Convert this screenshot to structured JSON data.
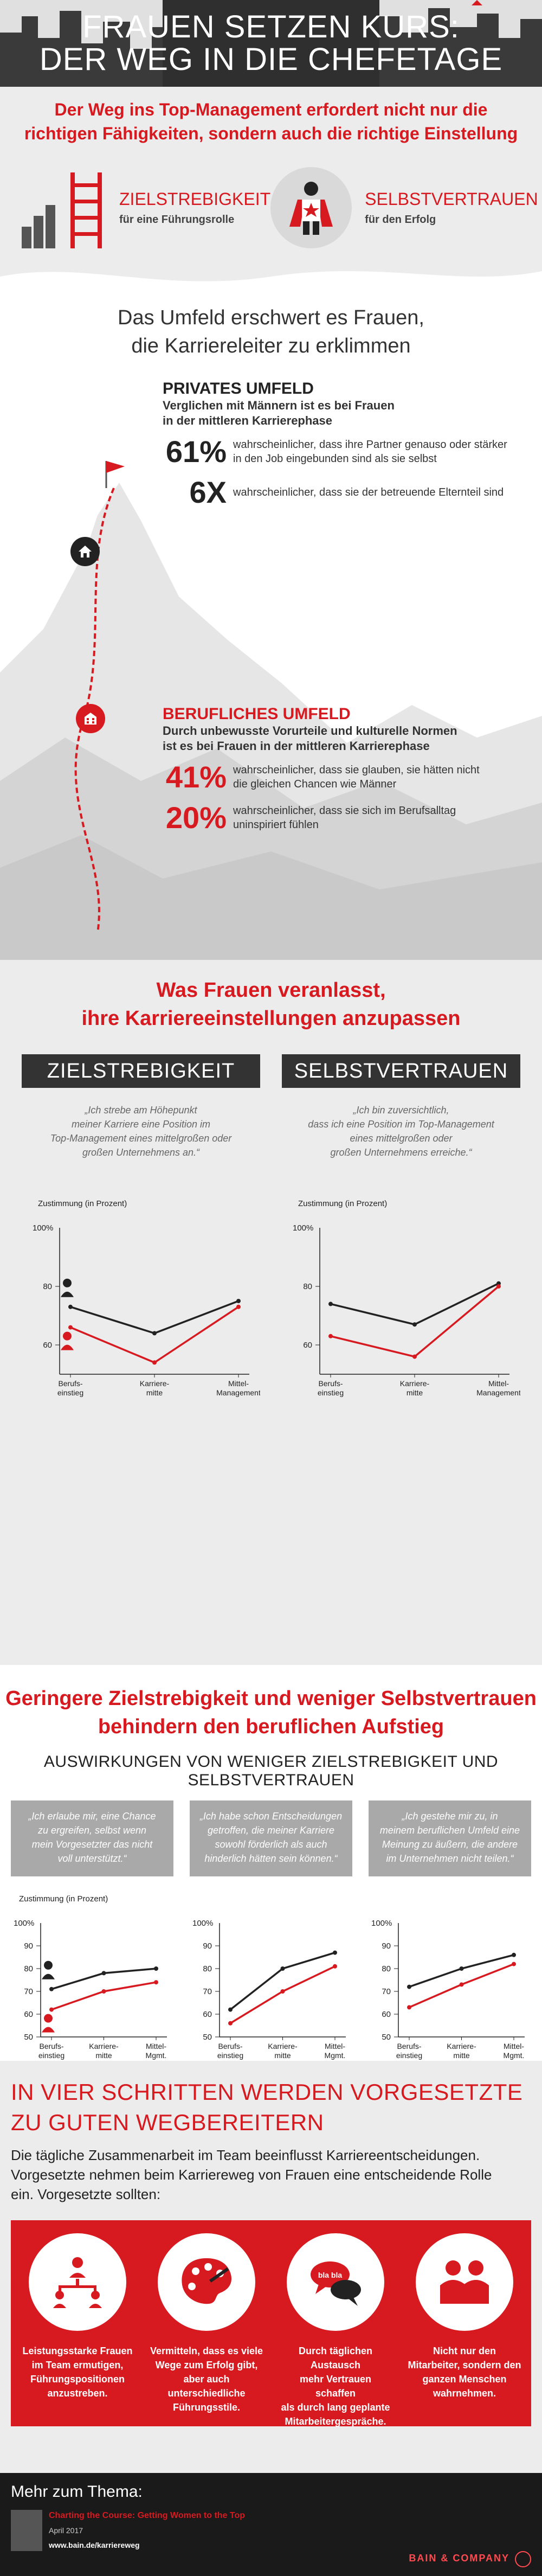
{
  "header": {
    "title_line1": "FRAUEN SETZEN KURS:",
    "title_line2": "DER WEG IN DIE CHEFETAGE"
  },
  "intro": {
    "lead_line1": "Der Weg ins Top-Management erfordert nicht nur die",
    "lead_line2": "richtigen Fähigkeiten, sondern auch die richtige Einstellung",
    "left_big": "ZIELSTREBIGKEIT",
    "left_small": "für eine Führungsrolle",
    "right_big": "SELBSTVERTRAUEN",
    "right_small": "für den Erfolg"
  },
  "environment": {
    "title_line1": "Das Umfeld erschwert es Frauen,",
    "title_line2": "die Karriereleiter zu erklimmen",
    "private": {
      "heading": "PRIVATES UMFELD",
      "sub_line1": "Verglichen mit Männern ist es bei Frauen",
      "sub_line2": "in der mittleren Karrierephase",
      "stats": [
        {
          "num": "61%",
          "desc_line1": "wahrscheinlicher, dass ihre Partner genauso oder stärker",
          "desc_line2": "in den Job eingebunden sind als sie selbst"
        },
        {
          "num": "6X",
          "desc_line1": "wahrscheinlicher, dass sie der betreuende Elternteil sind",
          "desc_line2": ""
        }
      ]
    },
    "professional": {
      "heading": "BERUFLICHES UMFELD",
      "sub_line1": "Durch unbewusste Vorurteile und kulturelle Normen",
      "sub_line2": "ist es bei Frauen in der mittleren Karrierephase",
      "stats": [
        {
          "num": "41%",
          "desc_line1": "wahrscheinlicher, dass sie glauben, sie hätten nicht",
          "desc_line2": "die gleichen Chancen wie Männer"
        },
        {
          "num": "20%",
          "desc_line1": "wahrscheinlicher, dass sie sich im Berufsalltag",
          "desc_line2": "uninspiriert fühlen"
        }
      ]
    }
  },
  "section2": {
    "title_line1": "Was Frauen veranlasst,",
    "title_line2": "ihre Karriereeinstellungen anzupassen",
    "left": {
      "label": "ZIELSTREBIGKEIT",
      "quote_line1": "„Ich strebe am Höhepunkt",
      "quote_line2": "meiner Karriere eine Position im",
      "quote_line3": "Top-Management eines mittelgroßen oder",
      "quote_line4": "großen Unternehmens an.“"
    },
    "right": {
      "label": "SELBSTVERTRAUEN",
      "quote_line1": "„Ich bin zuversichtlich,",
      "quote_line2": "dass ich eine Position im Top-Management",
      "quote_line3": "eines mittelgroßen oder",
      "quote_line4": "großen Unternehmens erreiche.“"
    }
  },
  "section3": {
    "title_line1": "Geringere Zielstrebigkeit und weniger Selbstvertrauen",
    "title_line2": "behindern den beruflichen Aufstieg",
    "subtitle": "AUSWIRKUNGEN VON WENIGER ZIELSTREBIGKEIT UND SELBSTVERTRAUEN",
    "quotes": [
      {
        "l1": "„Ich erlaube mir, eine Chance",
        "l2": "zu ergreifen, selbst wenn",
        "l3": "mein Vorgesetzter das nicht",
        "l4": "voll unterstützt.“"
      },
      {
        "l1": "„Ich habe schon Entscheidungen",
        "l2": "getroffen, die meiner Karriere",
        "l3": "sowohl förderlich als auch",
        "l4": "hinderlich hätten sein können.“"
      },
      {
        "l1": "„Ich gestehe mir zu, in",
        "l2": "meinem beruflichen Umfeld eine",
        "l3": "Meinung zu äußern, die andere",
        "l4": "im Unternehmen nicht teilen.“"
      }
    ]
  },
  "section4": {
    "title_line1": "IN VIER SCHRITTEN WERDEN VORGESETZTE",
    "title_line2": "ZU GUTEN WEGBEREITERN",
    "para_line1": "Die tägliche Zusammenarbeit im Team beeinflusst Karriereentscheidungen.",
    "para_line2": "Vorgesetzte nehmen beim Karriereweg von Frauen eine entscheidende Rolle",
    "para_line3": "ein. Vorgesetzte sollten:",
    "steps": [
      {
        "l1": "Leistungsstarke Frauen",
        "l2": "im Team ermutigen,",
        "l3": "Führungspositionen",
        "l4": "anzustreben."
      },
      {
        "l1": "Vermitteln, dass es viele",
        "l2": "Wege zum Erfolg gibt,",
        "l3": "aber auch unterschiedliche",
        "l4": "Führungsstile."
      },
      {
        "l1": "Durch täglichen Austausch",
        "l2": "mehr Vertrauen schaffen",
        "l3": "als durch lang geplante",
        "l4": "Mitarbeitergespräche."
      },
      {
        "l1": "Nicht nur den",
        "l2": "Mitarbeiter, sondern den",
        "l3": "ganzen Menschen",
        "l4": "wahrnehmen."
      }
    ],
    "bubble_text": "bla bla"
  },
  "footer": {
    "more": "Mehr zum Thema:",
    "report": "Charting the Course: Getting Women to the Top",
    "date": "April 2017",
    "url": "www.bain.de/karriereweg",
    "brand": "BAIN & COMPANY"
  },
  "colors": {
    "accent": "#d71920",
    "dark": "#222222",
    "light_bg": "#ececec"
  },
  "icons": [
    "skyline-graphic",
    "ladder-icon",
    "superhero-icon",
    "flag-icon",
    "house-icon",
    "building-icon",
    "man-icon",
    "woman-icon",
    "team-icon",
    "palette-icon",
    "speech-bubbles-icon",
    "people-icon"
  ],
  "chart_data": [
    {
      "type": "line",
      "ylabel": "Zustimmung (in Prozent)",
      "y_top_label": "100%",
      "yticks": [
        60,
        80
      ],
      "ylim": [
        50,
        100
      ],
      "categories": [
        "Berufs-\neinstieg",
        "Karriere-\nmitte",
        "Mittel-\nManagement"
      ],
      "series": [
        {
          "color": "#222222",
          "values": [
            73,
            64,
            75
          ]
        },
        {
          "color": "#d71920",
          "values": [
            66,
            54,
            73
          ]
        }
      ]
    },
    {
      "type": "line",
      "ylabel": "Zustimmung (in Prozent)",
      "y_top_label": "100%",
      "yticks": [
        60,
        80
      ],
      "ylim": [
        50,
        100
      ],
      "categories": [
        "Berufs-\neinstieg",
        "Karriere-\nmitte",
        "Mittel-\nManagement"
      ],
      "series": [
        {
          "color": "#222222",
          "values": [
            74,
            67,
            81
          ]
        },
        {
          "color": "#d71920",
          "values": [
            63,
            56,
            80
          ]
        }
      ]
    },
    {
      "type": "line",
      "ylabel": "Zustimmung (in Prozent)",
      "y_top_label": "100%",
      "yticks": [
        50,
        60,
        70,
        80,
        90
      ],
      "ylim": [
        50,
        100
      ],
      "categories": [
        "Berufs-\neinstieg",
        "Karriere-\nmitte",
        "Mittel-\nMgmt."
      ],
      "series": [
        {
          "color": "#222222",
          "values": [
            71,
            78,
            80
          ]
        },
        {
          "color": "#d71920",
          "values": [
            62,
            70,
            74
          ]
        }
      ]
    },
    {
      "type": "line",
      "ylabel": "",
      "y_top_label": "100%",
      "yticks": [
        50,
        60,
        70,
        80,
        90
      ],
      "ylim": [
        50,
        100
      ],
      "categories": [
        "Berufs-\neinstieg",
        "Karriere-\nmitte",
        "Mittel-\nMgmt."
      ],
      "series": [
        {
          "color": "#222222",
          "values": [
            62,
            80,
            87
          ]
        },
        {
          "color": "#d71920",
          "values": [
            56,
            70,
            81
          ]
        }
      ]
    },
    {
      "type": "line",
      "ylabel": "",
      "y_top_label": "100%",
      "yticks": [
        50,
        60,
        70,
        80,
        90
      ],
      "ylim": [
        50,
        100
      ],
      "categories": [
        "Berufs-\neinstieg",
        "Karriere-\nmitte",
        "Mittel-\nMgmt."
      ],
      "series": [
        {
          "color": "#222222",
          "values": [
            72,
            80,
            86
          ]
        },
        {
          "color": "#d71920",
          "values": [
            63,
            73,
            82
          ]
        }
      ]
    }
  ]
}
